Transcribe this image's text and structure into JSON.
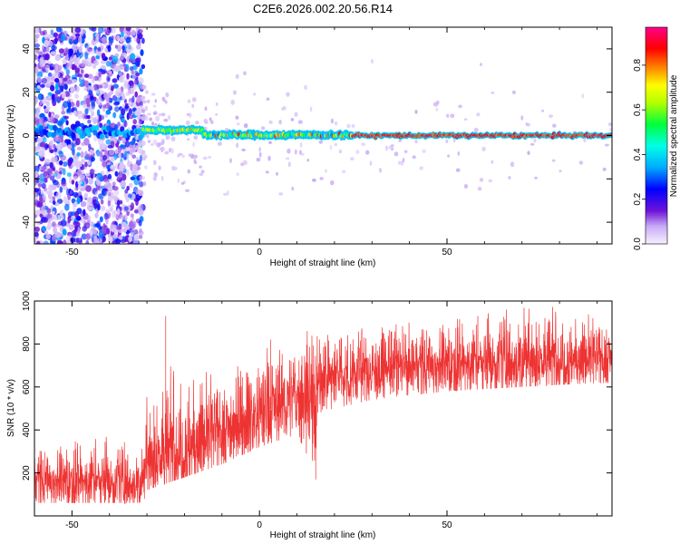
{
  "title": "C2E6.2026.002.20.56.R14",
  "chart_data": [
    {
      "type": "heatmap",
      "name": "spectrogram",
      "xlabel": "Height of straight line (km)",
      "ylabel": "Frequency (Hz)",
      "xlim": [
        -60,
        94
      ],
      "ylim": [
        -50,
        50
      ],
      "xticks": [
        -50,
        0,
        50
      ],
      "yticks": [
        -40,
        -20,
        0,
        20,
        40
      ],
      "colorbar": {
        "label": "Normalized spectral amplitude",
        "range": [
          0,
          0.97
        ],
        "ticks": [
          0.0,
          0.2,
          0.4,
          0.6,
          0.8
        ],
        "tick_labels": [
          "0.0",
          "0.2",
          "0.4",
          "0.6",
          "0.8"
        ]
      },
      "features": [
        {
          "x_range": [
            -60,
            -31
          ],
          "description": "broadband scatter across all frequencies",
          "typical_amplitude": 0.2
        },
        {
          "x_range": [
            -60,
            -31
          ],
          "frequency_hz": 2,
          "description": "weak ridge",
          "typical_amplitude": 0.3
        },
        {
          "x_range": [
            -31,
            94
          ],
          "frequency_hz": 0,
          "description": "strong narrow ridge near 0 Hz",
          "typical_amplitude": 0.9
        }
      ]
    },
    {
      "type": "line",
      "name": "snr",
      "color": "#ee3333",
      "xlabel": "Height of straight line (km)",
      "ylabel": "SNR (10 * v/v)",
      "xlim": [
        -60,
        94
      ],
      "ylim": [
        0,
        1000
      ],
      "xticks": [
        -50,
        0,
        50
      ],
      "yticks": [
        200,
        400,
        600,
        800,
        1000
      ],
      "envelope": {
        "x": [
          -60,
          -40,
          -31,
          -30,
          -20,
          -10,
          0,
          10,
          15,
          16,
          20,
          30,
          40,
          50,
          60,
          70,
          80,
          94
        ],
        "mean": [
          170,
          160,
          150,
          270,
          320,
          400,
          470,
          560,
          560,
          630,
          650,
          680,
          700,
          710,
          715,
          725,
          730,
          735
        ],
        "low": [
          60,
          60,
          60,
          120,
          180,
          240,
          320,
          380,
          200,
          480,
          500,
          540,
          560,
          580,
          590,
          600,
          610,
          620
        ],
        "high": [
          330,
          380,
          330,
          600,
          780,
          680,
          800,
          820,
          900,
          820,
          860,
          880,
          900,
          920,
          950,
          1000,
          980,
          940
        ]
      },
      "spikes": [
        {
          "x": -25,
          "y": 930
        },
        {
          "x": 3,
          "y": 820
        },
        {
          "x": 15,
          "y": 170
        }
      ]
    }
  ]
}
